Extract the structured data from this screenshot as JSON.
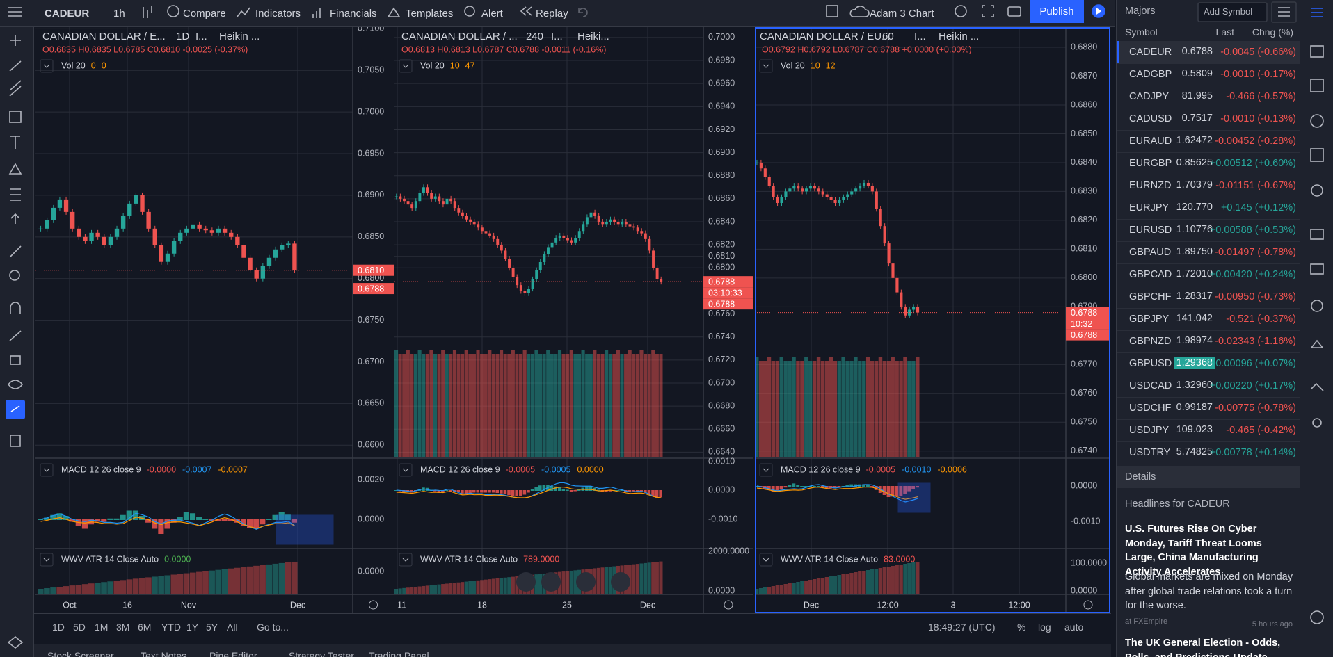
{
  "toolbar": {
    "symbol": "CADEUR",
    "interval": "1h",
    "compare": "Compare",
    "indicators": "Indicators",
    "financials": "Financials",
    "templates": "Templates",
    "alert": "Alert",
    "replay": "Replay",
    "layout_name": "Adam 3 Chart",
    "publish": "Publish"
  },
  "panes": [
    {
      "title": "CANADIAN DOLLAR / E...",
      "interval": "1D",
      "indicator": "I...",
      "chart_style": "Heikin ...",
      "ohlc": "O0.6835 H0.6835 L0.6785 C0.6810 -0.0025 (-0.37%)",
      "vol": {
        "label": "Vol 20",
        "a": "0",
        "b": "0"
      },
      "macd": {
        "label": "MACD 12 26 close 9",
        "values": [
          "-0.0000",
          "-0.0007",
          "-0.0007"
        ]
      },
      "wwv": {
        "label": "WWV ATR 14 Close Auto",
        "value": "0.0000",
        "color": "#4caf50"
      },
      "ylim": [
        0.6586,
        0.7102
      ],
      "price_ticks": [
        {
          "value": 0.71,
          "label": "0.7100"
        },
        {
          "value": 0.705,
          "label": "0.7050"
        },
        {
          "value": 0.7,
          "label": "0.7000"
        },
        {
          "value": 0.695,
          "label": "0.6950"
        },
        {
          "value": 0.69,
          "label": "0.6900"
        },
        {
          "value": 0.685,
          "label": "0.6850"
        },
        {
          "value": 0.68,
          "label": "0.6800"
        },
        {
          "value": 0.675,
          "label": "0.6750"
        },
        {
          "value": 0.67,
          "label": "0.6700"
        },
        {
          "value": 0.665,
          "label": "0.6650"
        },
        {
          "value": 0.66,
          "label": "0.6600"
        }
      ],
      "closes": [
        0.686,
        0.687,
        0.6885,
        0.6895,
        0.688,
        0.686,
        0.685,
        0.6845,
        0.6855,
        0.685,
        0.684,
        0.685,
        0.686,
        0.6875,
        0.689,
        0.69,
        0.688,
        0.686,
        0.684,
        0.682,
        0.683,
        0.6845,
        0.6855,
        0.686,
        0.6865,
        0.686,
        0.6858,
        0.6855,
        0.686,
        0.6855,
        0.685,
        0.684,
        0.6825,
        0.681,
        0.68,
        0.6815,
        0.6825,
        0.6835,
        0.684,
        0.6842,
        0.681
      ],
      "price_badges": [
        {
          "value": 0.681,
          "label": "0.6810"
        },
        {
          "value": 0.6788,
          "label": "0.6788"
        }
      ],
      "macd_ticks": [
        "0.0020",
        "0.0000"
      ],
      "wwv_ticks": [
        "0.0000"
      ],
      "time_labels": [
        "Oct",
        "16",
        "Nov",
        "Dec"
      ]
    },
    {
      "title": "CANADIAN DOLLAR / ...",
      "interval": "240",
      "indicator": "I...",
      "chart_style": "Heiki...",
      "ohlc": "O0.6813 H0.6813 L0.6787 C0.6788 -0.0011 (-0.16%)",
      "vol": {
        "label": "Vol 20",
        "a": "10",
        "b": "47"
      },
      "macd": {
        "label": "MACD 12 26 close 9",
        "values": [
          "-0.0005",
          "-0.0005",
          "0.0000"
        ]
      },
      "wwv": {
        "label": "WWV ATR 14 Close Auto",
        "value": "789.0000",
        "color": "#ef5350"
      },
      "ylim": [
        0.6636,
        0.7009
      ],
      "price_ticks": [
        {
          "value": 0.7,
          "label": "0.7000"
        },
        {
          "value": 0.698,
          "label": "0.6980"
        },
        {
          "value": 0.696,
          "label": "0.6960"
        },
        {
          "value": 0.694,
          "label": "0.6940"
        },
        {
          "value": 0.692,
          "label": "0.6920"
        },
        {
          "value": 0.69,
          "label": "0.6900"
        },
        {
          "value": 0.688,
          "label": "0.6880"
        },
        {
          "value": 0.686,
          "label": "0.6860"
        },
        {
          "value": 0.684,
          "label": "0.6840"
        },
        {
          "value": 0.682,
          "label": "0.6820"
        },
        {
          "value": 0.681,
          "label": "0.6810"
        },
        {
          "value": 0.68,
          "label": "0.6800"
        },
        {
          "value": 0.676,
          "label": "0.6760"
        },
        {
          "value": 0.674,
          "label": "0.6740"
        },
        {
          "value": 0.672,
          "label": "0.6720"
        },
        {
          "value": 0.67,
          "label": "0.6700"
        },
        {
          "value": 0.668,
          "label": "0.6680"
        },
        {
          "value": 0.666,
          "label": "0.6660"
        },
        {
          "value": 0.664,
          "label": "0.6640"
        }
      ],
      "closes": [
        0.6862,
        0.686,
        0.6858,
        0.6855,
        0.6852,
        0.6858,
        0.6865,
        0.687,
        0.6865,
        0.686,
        0.6862,
        0.6858,
        0.6855,
        0.686,
        0.6858,
        0.6852,
        0.6848,
        0.6845,
        0.6842,
        0.684,
        0.6838,
        0.6835,
        0.6832,
        0.683,
        0.6828,
        0.6825,
        0.682,
        0.6815,
        0.6808,
        0.68,
        0.6792,
        0.6785,
        0.678,
        0.6778,
        0.6782,
        0.679,
        0.6798,
        0.6805,
        0.6812,
        0.6818,
        0.6822,
        0.6826,
        0.6828,
        0.6826,
        0.6824,
        0.6822,
        0.6826,
        0.6832,
        0.6838,
        0.6844,
        0.6848,
        0.6845,
        0.684,
        0.6838,
        0.684,
        0.6842,
        0.684,
        0.6838,
        0.684,
        0.6838,
        0.6836,
        0.6835,
        0.6832,
        0.683,
        0.6825,
        0.6815,
        0.68,
        0.679,
        0.6788
      ],
      "price_badges": [
        {
          "value": 0.6788,
          "label": "0.6788"
        }
      ],
      "countdown": {
        "time": "03:10:33",
        "price": "0.6788"
      },
      "macd_ticks": [
        "0.0010",
        "0.0000",
        "-0.0010"
      ],
      "wwv_ticks": [
        "2000.0000",
        "0.0000"
      ],
      "time_labels": [
        "11",
        "18",
        "25",
        "Dec"
      ]
    },
    {
      "title": "CANADIAN DOLLAR / EU...",
      "interval": "60",
      "indicator": "I...",
      "chart_style": "Heikin ...",
      "ohlc": "O0.6792 H0.6792 L0.6787 C0.6788 +0.0000 (+0.00%)",
      "vol": {
        "label": "Vol 20",
        "a": "10",
        "b": "12"
      },
      "macd": {
        "label": "MACD 12 26 close 9",
        "values": [
          "-0.0005",
          "-0.0010",
          "-0.0006"
        ]
      },
      "wwv": {
        "label": "WWV ATR 14 Close Auto",
        "value": "83.0000",
        "color": "#ef5350"
      },
      "ylim": [
        0.6738,
        0.6887
      ],
      "price_ticks": [
        {
          "value": 0.688,
          "label": "0.6880"
        },
        {
          "value": 0.687,
          "label": "0.6870"
        },
        {
          "value": 0.686,
          "label": "0.6860"
        },
        {
          "value": 0.685,
          "label": "0.6850"
        },
        {
          "value": 0.684,
          "label": "0.6840"
        },
        {
          "value": 0.683,
          "label": "0.6830"
        },
        {
          "value": 0.682,
          "label": "0.6820"
        },
        {
          "value": 0.681,
          "label": "0.6810"
        },
        {
          "value": 0.68,
          "label": "0.6800"
        },
        {
          "value": 0.679,
          "label": "0.6790"
        },
        {
          "value": 0.677,
          "label": "0.6770"
        },
        {
          "value": 0.676,
          "label": "0.6760"
        },
        {
          "value": 0.675,
          "label": "0.6750"
        },
        {
          "value": 0.674,
          "label": "0.6740"
        }
      ],
      "closes": [
        0.684,
        0.6838,
        0.6835,
        0.6832,
        0.6828,
        0.6826,
        0.6828,
        0.683,
        0.6831,
        0.6832,
        0.6831,
        0.683,
        0.6831,
        0.6832,
        0.6831,
        0.683,
        0.6829,
        0.6828,
        0.6827,
        0.6826,
        0.6827,
        0.6828,
        0.6829,
        0.683,
        0.6831,
        0.6832,
        0.6833,
        0.6832,
        0.683,
        0.6824,
        0.6818,
        0.6812,
        0.6805,
        0.68,
        0.6795,
        0.679,
        0.6787,
        0.6789,
        0.679,
        0.6788
      ],
      "price_badges": [
        {
          "value": 0.6788,
          "label": "0.6788"
        }
      ],
      "countdown": {
        "time": "10:32",
        "price": "0.6788"
      },
      "macd_ticks": [
        "0.0000",
        "-0.0010"
      ],
      "wwv_ticks": [
        "100.0000",
        "0.0000"
      ],
      "time_labels": [
        "Dec",
        "12:00",
        "3",
        "12:00"
      ],
      "selected": true
    }
  ],
  "bottom_bar": {
    "ranges": [
      "1D",
      "5D",
      "1M",
      "3M",
      "6M",
      "YTD",
      "1Y",
      "5Y",
      "All"
    ],
    "goto": "Go to...",
    "clock": "18:49:27 (UTC)",
    "percent": "%",
    "log": "log",
    "auto": "auto"
  },
  "bottom_tabs": [
    "Stock Screener",
    "Text Notes",
    "Pine Editor",
    "Strategy Tester",
    "Trading Panel"
  ],
  "watchlist": {
    "title": "Majors",
    "add_symbol": "Add Symbol",
    "columns": [
      "Symbol",
      "Last",
      "Chng (%)"
    ],
    "rows": [
      [
        "CADEUR",
        "0.6788",
        "-0.0045 (-0.66%)"
      ],
      [
        "CADGBP",
        "0.5809",
        "-0.0010 (-0.17%)"
      ],
      [
        "CADJPY",
        "81.995",
        "-0.466 (-0.57%)"
      ],
      [
        "CADUSD",
        "0.7517",
        "-0.0010 (-0.13%)"
      ],
      [
        "EURAUD",
        "1.62472",
        "-0.00452 (-0.28%)"
      ],
      [
        "EURGBP",
        "0.85625",
        "+0.00512 (+0.60%)"
      ],
      [
        "EURNZD",
        "1.70379",
        "-0.01151 (-0.67%)"
      ],
      [
        "EURJPY",
        "120.770",
        "+0.145 (+0.12%)"
      ],
      [
        "EURUSD",
        "1.10776",
        "+0.00588 (+0.53%)"
      ],
      [
        "GBPAUD",
        "1.89750",
        "-0.01497 (-0.78%)"
      ],
      [
        "GBPCAD",
        "1.72010",
        "+0.00420 (+0.24%)"
      ],
      [
        "GBPCHF",
        "1.28317",
        "-0.00950 (-0.73%)"
      ],
      [
        "GBPJPY",
        "141.042",
        "-0.521 (-0.37%)"
      ],
      [
        "GBPNZD",
        "1.98974",
        "-0.02343 (-1.16%)"
      ],
      [
        "GBPUSD",
        "1.29368",
        "+0.00096 (+0.07%)"
      ],
      [
        "USDCAD",
        "1.32960",
        "+0.00220 (+0.17%)"
      ],
      [
        "USDCHF",
        "0.99187",
        "-0.00775 (-0.78%)"
      ],
      [
        "USDJPY",
        "109.023",
        "-0.465 (-0.42%)"
      ],
      [
        "USDTRY",
        "5.74825",
        "+0.00778 (+0.14%)"
      ]
    ],
    "selected": 0,
    "highlighted_last": 14
  },
  "details": "Details",
  "headlines": {
    "title": "Headlines for CADEUR",
    "items": [
      {
        "title": "U.S. Futures Rise On Cyber Monday, Tariff Threat Looms Large, China Manufacturing Activity Accelerates",
        "body": "Global markets are mixed on Monday after global trade relations took a turn for the worse.",
        "source": "at FXEmpire",
        "time": "5 hours ago"
      },
      {
        "title": "The UK General Election - Odds, Polls, and Predictions Update"
      }
    ]
  }
}
